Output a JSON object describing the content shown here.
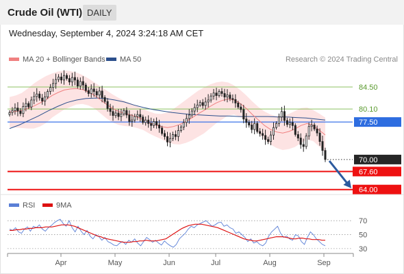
{
  "header": {
    "title": "Crude Oil (WTI)",
    "period": "DAILY",
    "timestamp": "Wednesday, September 4, 2024 3:24:18 AM CET"
  },
  "legend": {
    "ma20": "MA 20 + Bollinger Bands",
    "ma50": "MA 50",
    "credit": "Research © 2024 Trading Central",
    "rsi": "RSI",
    "rsi_ma": "9MA"
  },
  "colors": {
    "candle": "#222222",
    "ma20": "#f08080",
    "bollinger_fill": "#fde3e3",
    "ma50": "#2c4f8c",
    "support": "#ee1111",
    "pivot": "#3a73e8",
    "resistance": "#8cc260",
    "rsi": "#5a7fd6",
    "rsi_ma": "#dd1111",
    "arrow": "#2c5a9e"
  },
  "chart_data": [
    {
      "type": "candlestick",
      "x_ticks": [
        "Apr",
        "May",
        "Jun",
        "Jul",
        "Aug",
        "Sep"
      ],
      "ylim": [
        63.0,
        88.2
      ],
      "levels": [
        {
          "value": 84.5,
          "label": "84.50",
          "kind": "resistance"
        },
        {
          "value": 80.1,
          "label": "80.10",
          "kind": "resistance"
        },
        {
          "value": 77.5,
          "label": "77.50",
          "kind": "pivot"
        },
        {
          "value": 70.0,
          "label": "70.00",
          "kind": "last"
        },
        {
          "value": 67.6,
          "label": "67.60",
          "kind": "support"
        },
        {
          "value": 64.0,
          "label": "64.00",
          "kind": "support"
        }
      ],
      "close": [
        79.4,
        79.8,
        80.3,
        79.7,
        79.2,
        80.6,
        81.2,
        80.5,
        81.9,
        82.6,
        83.1,
        82.3,
        81.7,
        82.5,
        83.6,
        84.4,
        85.2,
        86.0,
        86.5,
        85.9,
        86.8,
        86.2,
        85.5,
        86.4,
        85.9,
        84.7,
        85.6,
        84.9,
        83.8,
        83.2,
        84.1,
        83.6,
        82.9,
        83.7,
        82.4,
        81.6,
        80.2,
        79.6,
        78.8,
        79.3,
        78.6,
        79.1,
        79.8,
        78.9,
        77.6,
        77.9,
        78.6,
        79.0,
        78.5,
        77.4,
        77.9,
        77.2,
        76.8,
        77.6,
        76.9,
        76.3,
        75.2,
        74.6,
        73.5,
        74.2,
        75.0,
        74.6,
        75.8,
        76.5,
        77.4,
        78.2,
        78.9,
        79.7,
        80.4,
        80.9,
        81.4,
        80.8,
        81.5,
        81.9,
        82.7,
        83.3,
        82.8,
        83.6,
        83.2,
        82.5,
        82.9,
        82.2,
        82.0,
        81.3,
        80.5,
        80.0,
        78.1,
        77.4,
        76.9,
        76.0,
        77.2,
        75.6,
        75.2,
        74.8,
        74.0,
        73.6,
        74.9,
        76.4,
        77.2,
        78.5,
        79.6,
        77.8,
        77.0,
        77.4,
        76.8,
        75.0,
        74.3,
        73.0,
        72.6,
        74.7,
        76.6,
        76.9,
        76.1,
        75.3,
        73.6,
        71.8,
        70.0
      ],
      "ma20": [
        79.5,
        79.6,
        79.8,
        80.2,
        80.7,
        81.3,
        82.0,
        82.8,
        83.4,
        83.9,
        84.1,
        84.2,
        84.0,
        83.5,
        82.8,
        81.9,
        81.0,
        80.2,
        79.6,
        79.2,
        78.9,
        78.5,
        78.0,
        77.4,
        76.9,
        76.6,
        76.4,
        76.6,
        77.0,
        77.6,
        78.3,
        79.1,
        79.8,
        80.6,
        81.3,
        81.8,
        82.1,
        81.9,
        81.2,
        80.2,
        79.0,
        77.9,
        76.8,
        76.0,
        75.5,
        75.3,
        75.6,
        76.1,
        76.8,
        77.2,
        76.8,
        75.9,
        74.9
      ],
      "bollinger_upper": [
        82.5,
        82.8,
        83.3,
        84.2,
        85.2,
        86.0,
        86.7,
        87.2,
        87.6,
        87.8,
        87.7,
        87.4,
        86.9,
        86.2,
        85.4,
        84.6,
        83.8,
        83.0,
        82.3,
        81.7,
        81.2,
        80.7,
        80.1,
        79.6,
        79.2,
        79.1,
        79.4,
        80.1,
        81.0,
        81.9,
        82.8,
        83.7,
        84.4,
        85.0,
        85.4,
        85.6,
        85.4,
        84.8,
        83.9,
        82.8,
        81.6,
        80.5,
        79.6,
        79.0,
        78.7,
        78.7,
        79.1,
        79.7,
        80.3,
        80.4,
        79.9,
        79.2,
        78.4
      ],
      "bollinger_lower": [
        76.5,
        76.4,
        76.3,
        76.2,
        76.2,
        76.6,
        77.3,
        78.4,
        79.2,
        80.0,
        80.5,
        81.0,
        81.1,
        80.8,
        80.2,
        79.2,
        78.2,
        77.4,
        76.9,
        76.7,
        76.6,
        76.3,
        75.9,
        75.2,
        74.6,
        74.1,
        73.4,
        73.1,
        73.0,
        73.3,
        73.8,
        74.5,
        75.2,
        76.2,
        77.2,
        78.0,
        78.8,
        79.0,
        78.5,
        77.6,
        76.4,
        75.3,
        74.0,
        73.0,
        72.3,
        71.9,
        72.1,
        72.5,
        73.3,
        74.0,
        73.7,
        72.6,
        71.4
      ],
      "ma50": [
        76.2,
        76.9,
        77.8,
        78.7,
        79.7,
        80.6,
        81.4,
        81.9,
        82.2,
        82.3,
        82.2,
        81.9,
        81.5,
        80.9,
        80.4,
        80.0,
        79.7,
        79.4,
        79.2,
        79.0,
        78.9,
        78.8,
        78.7,
        78.7,
        78.6,
        78.6,
        78.6,
        78.6,
        78.5,
        78.5,
        78.4,
        78.3,
        78.1,
        77.9
      ],
      "forecast_arrow": {
        "from": 70.0,
        "to": 64.0
      }
    },
    {
      "type": "line",
      "name": "RSI",
      "ylim": [
        25,
        80
      ],
      "y_ticks": [
        70,
        50,
        30
      ],
      "rsi": [
        58,
        56,
        60,
        54,
        52,
        58,
        61,
        55,
        62,
        60,
        64,
        58,
        55,
        60,
        63,
        67,
        70,
        72,
        66,
        62,
        70,
        60,
        54,
        62,
        55,
        50,
        56,
        48,
        44,
        50,
        47,
        42,
        46,
        40,
        38,
        35,
        34,
        38,
        40,
        36,
        42,
        39,
        44,
        38,
        34,
        40,
        46,
        43,
        39,
        42,
        38,
        35,
        41,
        37,
        34,
        32,
        36,
        44,
        48,
        52,
        58,
        62,
        60,
        64,
        66,
        68,
        70,
        66,
        62,
        64,
        67,
        68,
        62,
        64,
        60,
        58,
        52,
        54,
        50,
        46,
        40,
        44,
        38,
        40,
        36,
        34,
        38,
        48,
        54,
        58,
        62,
        52,
        46,
        48,
        44,
        42,
        50,
        48,
        40,
        36,
        46,
        54,
        50,
        44,
        40,
        36,
        34
      ],
      "rsi_ma": [
        56,
        56,
        57,
        57,
        58,
        58,
        59,
        59,
        60,
        60,
        60,
        61,
        61,
        61,
        62,
        63,
        64,
        64,
        64,
        63,
        62,
        60,
        58,
        56,
        54,
        52,
        50,
        48,
        47,
        45,
        44,
        43,
        42,
        41,
        40,
        39,
        39,
        39,
        40,
        40,
        41,
        41,
        42,
        41,
        41,
        41,
        42,
        43,
        44,
        47,
        50,
        53,
        56,
        59,
        61,
        63,
        64,
        65,
        65,
        65,
        64,
        63,
        62,
        61,
        60,
        58,
        56,
        54,
        52,
        50,
        48,
        46,
        44,
        43,
        42,
        41,
        41,
        42,
        43,
        44,
        45,
        46,
        47,
        47,
        47,
        46,
        45,
        44,
        44,
        45,
        45,
        44,
        44,
        43,
        43,
        43,
        42,
        42
      ]
    }
  ]
}
